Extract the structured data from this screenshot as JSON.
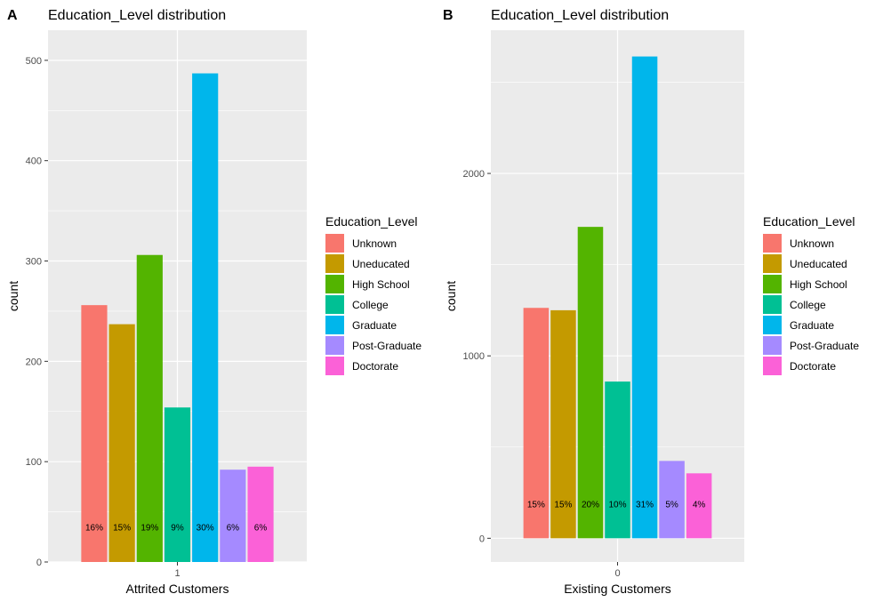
{
  "chart_data": [
    {
      "type": "bar",
      "panel_tag": "A",
      "title": "Education_Level distribution",
      "xlabel": "Attrited Customers",
      "ylabel": "count",
      "x_tick": "1",
      "ylim": [
        0,
        530
      ],
      "y_ticks": [
        0,
        100,
        200,
        300,
        400,
        500
      ],
      "categories": [
        "Unknown",
        "Uneducated",
        "High School",
        "College",
        "Graduate",
        "Post-Graduate",
        "Doctorate"
      ],
      "values": [
        256,
        237,
        306,
        154,
        487,
        92,
        95
      ],
      "labels": [
        "16%",
        "15%",
        "19%",
        "9%",
        "30%",
        "6%",
        "6%"
      ],
      "label_y": 35,
      "legend": {
        "title": "Education_Level",
        "position": "right"
      },
      "grid": true
    },
    {
      "type": "bar",
      "panel_tag": "B",
      "title": "Education_Level distribution",
      "xlabel": "Existing Customers",
      "ylabel": "count",
      "x_tick": "0",
      "ylim": [
        -130,
        2785
      ],
      "y_ticks": [
        0,
        1000,
        2000
      ],
      "categories": [
        "Unknown",
        "Uneducated",
        "High School",
        "College",
        "Graduate",
        "Post-Graduate",
        "Doctorate"
      ],
      "values": [
        1263,
        1250,
        1707,
        859,
        2641,
        424,
        356
      ],
      "labels": [
        "15%",
        "15%",
        "20%",
        "10%",
        "31%",
        "5%",
        "4%"
      ],
      "label_y": 190,
      "legend": {
        "title": "Education_Level",
        "position": "right"
      },
      "grid": true
    }
  ],
  "colors": {
    "Unknown": "#F8766D",
    "Uneducated": "#C49A00",
    "High School": "#53B400",
    "College": "#00C094",
    "Graduate": "#00B6EB",
    "Post-Graduate": "#A58AFF",
    "Doctorate": "#FB61D7"
  }
}
